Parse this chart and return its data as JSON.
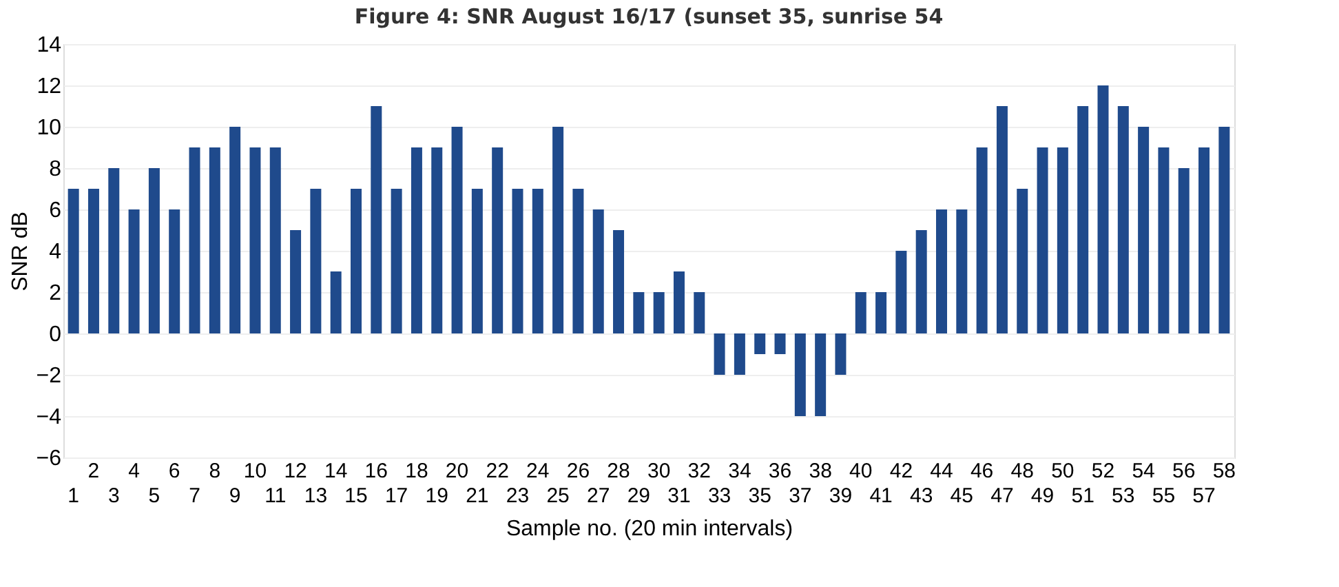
{
  "chart_data": {
    "type": "bar",
    "title": "Figure 4: SNR August 16/17 (sunset 35, sunrise 54",
    "xlabel": "Sample no. (20 min intervals)",
    "ylabel": "SNR dB",
    "categories": [
      "1",
      "2",
      "3",
      "4",
      "5",
      "6",
      "7",
      "8",
      "9",
      "10",
      "11",
      "12",
      "13",
      "14",
      "15",
      "16",
      "17",
      "18",
      "19",
      "20",
      "21",
      "22",
      "23",
      "24",
      "25",
      "26",
      "27",
      "28",
      "29",
      "30",
      "31",
      "32",
      "33",
      "34",
      "35",
      "36",
      "37",
      "38",
      "39",
      "40",
      "41",
      "42",
      "43",
      "44",
      "45",
      "46",
      "47",
      "48",
      "49",
      "50",
      "51",
      "52",
      "53",
      "54",
      "55",
      "56",
      "57",
      "58"
    ],
    "values": [
      7,
      7,
      8,
      6,
      8,
      6,
      9,
      9,
      10,
      9,
      9,
      5,
      7,
      3,
      7,
      11,
      7,
      9,
      9,
      10,
      7,
      9,
      7,
      7,
      10,
      7,
      6,
      5,
      2,
      2,
      3,
      2,
      -2,
      -2,
      -1,
      -1,
      -4,
      -4,
      -2,
      2,
      2,
      4,
      5,
      6,
      6,
      9,
      11,
      7,
      9,
      9,
      11,
      12,
      11,
      10,
      9,
      8,
      9,
      10
    ],
    "color": "#1f4a8c",
    "ylim": [
      -6,
      14
    ],
    "yticks": [
      -6,
      -4,
      -2,
      0,
      2,
      4,
      6,
      8,
      10,
      12,
      14
    ],
    "grid": "y"
  }
}
